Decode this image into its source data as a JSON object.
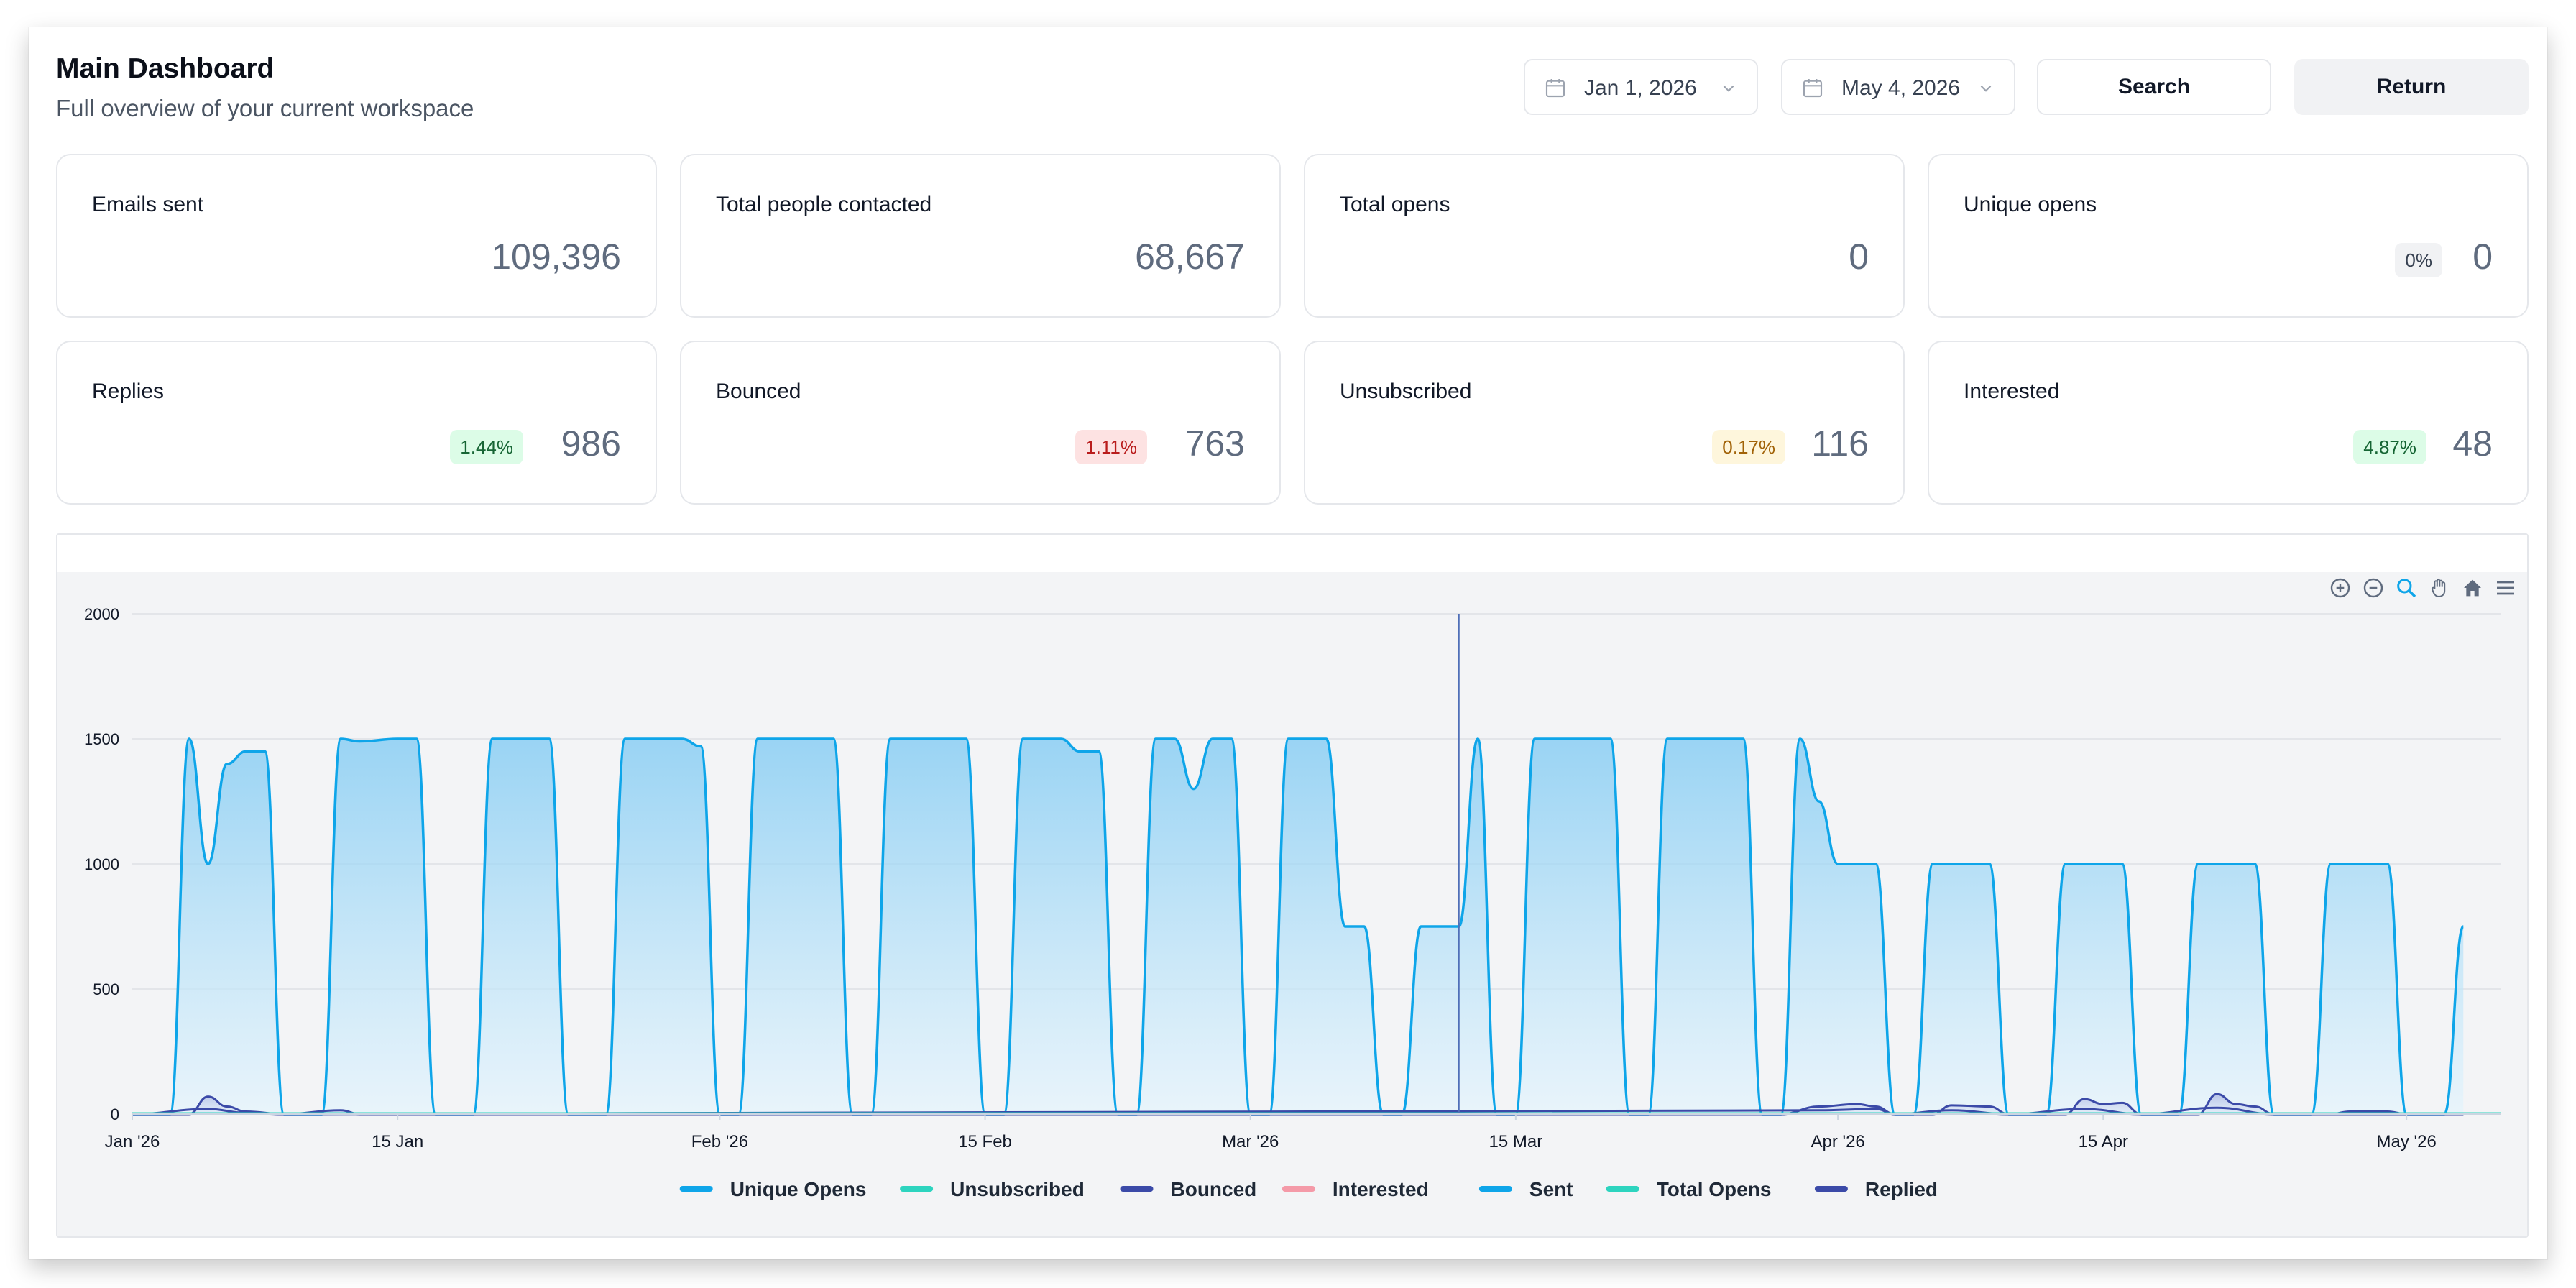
{
  "header": {
    "title": "Main Dashboard",
    "subtitle": "Full overview of your current workspace",
    "start_date": "Jan 1, 2026",
    "end_date": "May 4, 2026",
    "search_label": "Search",
    "return_label": "Return"
  },
  "cards": [
    {
      "label": "Emails sent",
      "value": "109,396",
      "badge": null
    },
    {
      "label": "Total people contacted",
      "value": "68,667",
      "badge": null
    },
    {
      "label": "Total opens",
      "value": "0",
      "badge": null
    },
    {
      "label": "Unique opens",
      "value": "0",
      "badge": "0%",
      "badge_color": "gray"
    },
    {
      "label": "Replies",
      "value": "986",
      "badge": "1.44%",
      "badge_color": "green"
    },
    {
      "label": "Bounced",
      "value": "763",
      "badge": "1.11%",
      "badge_color": "red"
    },
    {
      "label": "Unsubscribed",
      "value": "116",
      "badge": "0.17%",
      "badge_color": "amber"
    },
    {
      "label": "Interested",
      "value": "48",
      "badge": "4.87%",
      "badge_color": "green"
    }
  ],
  "toolbar_icons": [
    "zoom-in-icon",
    "zoom-out-icon",
    "zoom-select-icon",
    "pan-hand-icon",
    "reset-home-icon",
    "menu-icon"
  ],
  "chart_data": {
    "type": "area",
    "ylim": [
      0,
      2000
    ],
    "yticks": [
      "0",
      "500",
      "1000",
      "1500",
      "2000"
    ],
    "xlim": [
      "2026-01-01",
      "2026-05-06"
    ],
    "xticks": [
      {
        "date": "2026-01-01",
        "label": "Jan '26"
      },
      {
        "date": "2026-01-15",
        "label": "15 Jan"
      },
      {
        "date": "2026-02-01",
        "label": "Feb '26"
      },
      {
        "date": "2026-02-15",
        "label": "15 Feb"
      },
      {
        "date": "2026-03-01",
        "label": "Mar '26"
      },
      {
        "date": "2026-03-15",
        "label": "15 Mar"
      },
      {
        "date": "2026-04-01",
        "label": "Apr '26"
      },
      {
        "date": "2026-04-15",
        "label": "15 Apr"
      },
      {
        "date": "2026-05-01",
        "label": "May '26"
      }
    ],
    "crosshair_date": "2026-03-12",
    "grid": true,
    "legend_position": "bottom",
    "legend": [
      {
        "name": "Unique Opens",
        "color": "#0ea5e9"
      },
      {
        "name": "Unsubscribed",
        "color": "#2dd4bf"
      },
      {
        "name": "Bounced",
        "color": "#3b4aa8"
      },
      {
        "name": "Interested",
        "color": "#f49aa8"
      },
      {
        "name": "Sent",
        "color": "#0ea5e9"
      },
      {
        "name": "Total Opens",
        "color": "#2dd4bf"
      },
      {
        "name": "Replied",
        "color": "#3b4aa8"
      }
    ],
    "series": [
      {
        "name": "Sent",
        "color": "#0ea5e9",
        "fill": true,
        "points": [
          [
            "2026-01-01",
            0
          ],
          [
            "2026-01-03",
            0
          ],
          [
            "2026-01-04",
            1500
          ],
          [
            "2026-01-05",
            1000
          ],
          [
            "2026-01-06",
            1400
          ],
          [
            "2026-01-07",
            1450
          ],
          [
            "2026-01-08",
            1450
          ],
          [
            "2026-01-09",
            0
          ],
          [
            "2026-01-11",
            0
          ],
          [
            "2026-01-12",
            1500
          ],
          [
            "2026-01-13",
            1490
          ],
          [
            "2026-01-15",
            1500
          ],
          [
            "2026-01-16",
            1500
          ],
          [
            "2026-01-17",
            0
          ],
          [
            "2026-01-19",
            0
          ],
          [
            "2026-01-20",
            1500
          ],
          [
            "2026-01-22",
            1500
          ],
          [
            "2026-01-23",
            1500
          ],
          [
            "2026-01-24",
            0
          ],
          [
            "2026-01-26",
            0
          ],
          [
            "2026-01-27",
            1500
          ],
          [
            "2026-01-29",
            1500
          ],
          [
            "2026-01-30",
            1500
          ],
          [
            "2026-01-31",
            1470
          ],
          [
            "2026-02-01",
            0
          ],
          [
            "2026-02-02",
            0
          ],
          [
            "2026-02-03",
            1500
          ],
          [
            "2026-02-05",
            1500
          ],
          [
            "2026-02-06",
            1500
          ],
          [
            "2026-02-07",
            1500
          ],
          [
            "2026-02-08",
            0
          ],
          [
            "2026-02-09",
            0
          ],
          [
            "2026-02-10",
            1500
          ],
          [
            "2026-02-12",
            1500
          ],
          [
            "2026-02-13",
            1500
          ],
          [
            "2026-02-14",
            1500
          ],
          [
            "2026-02-15",
            0
          ],
          [
            "2026-02-16",
            0
          ],
          [
            "2026-02-17",
            1500
          ],
          [
            "2026-02-19",
            1500
          ],
          [
            "2026-02-20",
            1450
          ],
          [
            "2026-02-21",
            1450
          ],
          [
            "2026-02-22",
            0
          ],
          [
            "2026-02-23",
            0
          ],
          [
            "2026-02-24",
            1500
          ],
          [
            "2026-02-25",
            1500
          ],
          [
            "2026-02-26",
            1300
          ],
          [
            "2026-02-27",
            1500
          ],
          [
            "2026-02-28",
            1500
          ],
          [
            "2026-03-01",
            0
          ],
          [
            "2026-03-02",
            0
          ],
          [
            "2026-03-03",
            1500
          ],
          [
            "2026-03-05",
            1500
          ],
          [
            "2026-03-06",
            750
          ],
          [
            "2026-03-07",
            750
          ],
          [
            "2026-03-08",
            0
          ],
          [
            "2026-03-09",
            0
          ],
          [
            "2026-03-10",
            750
          ],
          [
            "2026-03-12",
            750
          ],
          [
            "2026-03-13",
            1500
          ],
          [
            "2026-03-14",
            0
          ],
          [
            "2026-03-15",
            0
          ],
          [
            "2026-03-16",
            1500
          ],
          [
            "2026-03-18",
            1500
          ],
          [
            "2026-03-20",
            1500
          ],
          [
            "2026-03-21",
            0
          ],
          [
            "2026-03-22",
            0
          ],
          [
            "2026-03-23",
            1500
          ],
          [
            "2026-03-25",
            1500
          ],
          [
            "2026-03-27",
            1500
          ],
          [
            "2026-03-28",
            0
          ],
          [
            "2026-03-29",
            0
          ],
          [
            "2026-03-30",
            1500
          ],
          [
            "2026-03-31",
            1250
          ],
          [
            "2026-04-01",
            1000
          ],
          [
            "2026-04-03",
            1000
          ],
          [
            "2026-04-04",
            0
          ],
          [
            "2026-04-05",
            0
          ],
          [
            "2026-04-06",
            1000
          ],
          [
            "2026-04-09",
            1000
          ],
          [
            "2026-04-10",
            0
          ],
          [
            "2026-04-12",
            0
          ],
          [
            "2026-04-13",
            1000
          ],
          [
            "2026-04-16",
            1000
          ],
          [
            "2026-04-17",
            0
          ],
          [
            "2026-04-19",
            0
          ],
          [
            "2026-04-20",
            1000
          ],
          [
            "2026-04-23",
            1000
          ],
          [
            "2026-04-24",
            0
          ],
          [
            "2026-04-26",
            0
          ],
          [
            "2026-04-27",
            1000
          ],
          [
            "2026-04-30",
            1000
          ],
          [
            "2026-05-01",
            0
          ],
          [
            "2026-05-03",
            0
          ],
          [
            "2026-05-04",
            750
          ]
        ]
      },
      {
        "name": "Replied",
        "color": "#3b4aa8",
        "fill": true,
        "points": [
          [
            "2026-01-01",
            0
          ],
          [
            "2026-01-04",
            0
          ],
          [
            "2026-01-05",
            70
          ],
          [
            "2026-01-06",
            30
          ],
          [
            "2026-01-07",
            10
          ],
          [
            "2026-01-09",
            0
          ],
          [
            "2026-01-12",
            15
          ],
          [
            "2026-01-13",
            0
          ],
          [
            "2026-03-29",
            0
          ],
          [
            "2026-03-31",
            30
          ],
          [
            "2026-04-02",
            40
          ],
          [
            "2026-04-03",
            30
          ],
          [
            "2026-04-04",
            0
          ],
          [
            "2026-04-06",
            0
          ],
          [
            "2026-04-07",
            35
          ],
          [
            "2026-04-09",
            30
          ],
          [
            "2026-04-10",
            0
          ],
          [
            "2026-04-13",
            0
          ],
          [
            "2026-04-14",
            60
          ],
          [
            "2026-04-15",
            40
          ],
          [
            "2026-04-16",
            45
          ],
          [
            "2026-04-17",
            0
          ],
          [
            "2026-04-20",
            0
          ],
          [
            "2026-04-21",
            80
          ],
          [
            "2026-04-22",
            40
          ],
          [
            "2026-04-23",
            30
          ],
          [
            "2026-04-24",
            0
          ],
          [
            "2026-04-27",
            0
          ],
          [
            "2026-04-28",
            10
          ],
          [
            "2026-04-30",
            10
          ],
          [
            "2026-05-01",
            0
          ],
          [
            "2026-05-04",
            0
          ]
        ]
      },
      {
        "name": "Bounced",
        "color": "#3b4aa8",
        "fill": false,
        "points": [
          [
            "2026-01-01",
            0
          ],
          [
            "2026-01-05",
            20
          ],
          [
            "2026-01-07",
            5
          ],
          [
            "2026-01-09",
            0
          ],
          [
            "2026-03-31",
            15
          ],
          [
            "2026-04-03",
            20
          ],
          [
            "2026-04-04",
            0
          ],
          [
            "2026-04-07",
            15
          ],
          [
            "2026-04-10",
            0
          ],
          [
            "2026-04-14",
            20
          ],
          [
            "2026-04-17",
            0
          ],
          [
            "2026-04-21",
            25
          ],
          [
            "2026-04-24",
            0
          ],
          [
            "2026-05-04",
            0
          ]
        ]
      }
    ]
  }
}
